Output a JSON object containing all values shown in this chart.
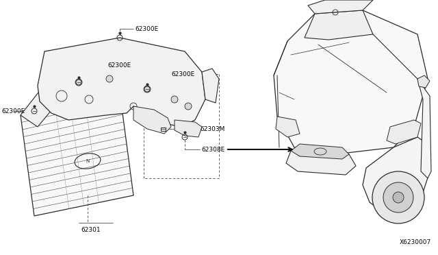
{
  "bg_color": "#ffffff",
  "line_color": "#2a2a2a",
  "text_color": "#000000",
  "font_size": 6.5,
  "diagram_id": "X6230007",
  "labels": {
    "62300E_far_left": "62300E",
    "62300E_top": "62300E",
    "62300E_mid1": "62300E",
    "62300E_mid2": "62300E",
    "62303M": "62303M",
    "62308E": "62308E",
    "62301": "62301"
  }
}
